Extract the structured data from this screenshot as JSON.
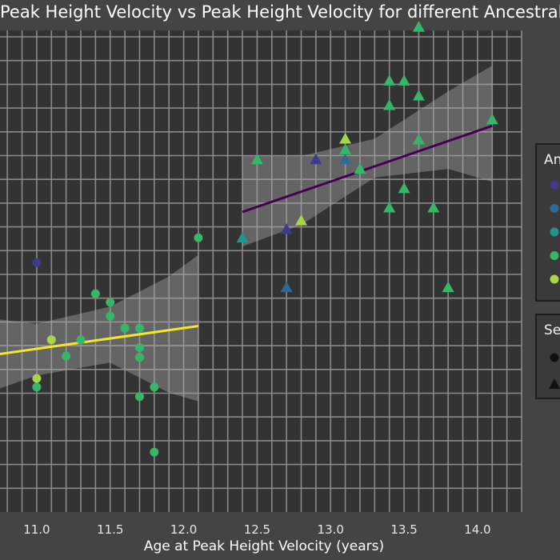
{
  "chart_data": {
    "type": "scatter",
    "title": "Peak Height Velocity vs Peak Height Velocity for different Ancestral bac",
    "xlabel": "Age at Peak Height Velocity (years)",
    "ylabel": "",
    "xlim": [
      10.75,
      14.3
    ],
    "x_ticks": [
      "11.0",
      "11.5",
      "12.0",
      "12.5",
      "13.0",
      "13.5",
      "14.0"
    ],
    "ylim": [
      0,
      1
    ],
    "grid": true,
    "background": "#333333",
    "grid_color": "#8a8a8a",
    "legends": [
      {
        "title": "An",
        "placement": "right",
        "entries": [
          {
            "marker": "circle",
            "color": "#3f3a8c"
          },
          {
            "marker": "circle",
            "color": "#306a94"
          },
          {
            "marker": "circle",
            "color": "#22948c"
          },
          {
            "marker": "circle",
            "color": "#37b66a"
          },
          {
            "marker": "circle",
            "color": "#a8d44a"
          }
        ]
      },
      {
        "title": "Se",
        "placement": "right",
        "entries": [
          {
            "marker": "circle",
            "color": "#111111"
          },
          {
            "marker": "triangle",
            "color": "#111111"
          }
        ]
      }
    ],
    "circles": [
      {
        "x": 11.0,
        "y": 0.542,
        "color": "#3f3a8c"
      },
      {
        "x": 11.1,
        "y": 0.363,
        "color": "#a8d44a"
      },
      {
        "x": 11.0,
        "y": 0.273,
        "color": "#a8d44a"
      },
      {
        "x": 11.0,
        "y": 0.253,
        "color": "#37b66a"
      },
      {
        "x": 11.2,
        "y": 0.325,
        "color": "#37b66a"
      },
      {
        "x": 11.3,
        "y": 0.363,
        "color": "#37b66a"
      },
      {
        "x": 11.4,
        "y": 0.47,
        "color": "#37b66a"
      },
      {
        "x": 11.5,
        "y": 0.45,
        "color": "#37b66a"
      },
      {
        "x": 11.5,
        "y": 0.418,
        "color": "#37b66a"
      },
      {
        "x": 11.6,
        "y": 0.39,
        "color": "#37b66a"
      },
      {
        "x": 11.7,
        "y": 0.39,
        "color": "#37b66a"
      },
      {
        "x": 11.7,
        "y": 0.345,
        "color": "#37b66a"
      },
      {
        "x": 11.7,
        "y": 0.322,
        "color": "#37b66a"
      },
      {
        "x": 11.7,
        "y": 0.231,
        "color": "#37b66a"
      },
      {
        "x": 11.8,
        "y": 0.253,
        "color": "#37b66a"
      },
      {
        "x": 11.8,
        "y": 0.102,
        "color": "#37b66a"
      },
      {
        "x": 12.1,
        "y": 0.6,
        "color": "#37b66a"
      }
    ],
    "triangles": [
      {
        "x": 12.4,
        "y": 0.6,
        "color": "#22948c"
      },
      {
        "x": 12.5,
        "y": 0.782,
        "color": "#37b66a"
      },
      {
        "x": 12.7,
        "y": 0.485,
        "color": "#306a94"
      },
      {
        "x": 12.7,
        "y": 0.62,
        "color": "#3f3a8c"
      },
      {
        "x": 12.8,
        "y": 0.64,
        "color": "#a8d44a"
      },
      {
        "x": 12.9,
        "y": 0.782,
        "color": "#3f3a8c"
      },
      {
        "x": 13.1,
        "y": 0.782,
        "color": "#306a94"
      },
      {
        "x": 13.1,
        "y": 0.805,
        "color": "#37b66a"
      },
      {
        "x": 13.1,
        "y": 0.83,
        "color": "#a8d44a"
      },
      {
        "x": 13.2,
        "y": 0.76,
        "color": "#37b66a"
      },
      {
        "x": 13.4,
        "y": 0.67,
        "color": "#37b66a"
      },
      {
        "x": 13.4,
        "y": 0.908,
        "color": "#37b66a"
      },
      {
        "x": 13.4,
        "y": 0.965,
        "color": "#37b66a"
      },
      {
        "x": 13.5,
        "y": 0.965,
        "color": "#37b66a"
      },
      {
        "x": 13.5,
        "y": 0.715,
        "color": "#37b66a"
      },
      {
        "x": 13.6,
        "y": 1.09,
        "color": "#37b66a"
      },
      {
        "x": 13.6,
        "y": 0.93,
        "color": "#37b66a"
      },
      {
        "x": 13.6,
        "y": 0.828,
        "color": "#37b66a"
      },
      {
        "x": 13.7,
        "y": 0.67,
        "color": "#37b66a"
      },
      {
        "x": 13.8,
        "y": 0.485,
        "color": "#37b66a"
      },
      {
        "x": 14.1,
        "y": 0.875,
        "color": "#37b66a"
      }
    ],
    "fits": [
      {
        "color": "#f5e626",
        "x": [
          10.75,
          12.1
        ],
        "y": [
          0.33,
          0.395
        ],
        "band_x": [
          10.75,
          11.0,
          11.5,
          11.9,
          12.1
        ],
        "band_lower": [
          0.25,
          0.28,
          0.31,
          0.24,
          0.22
        ],
        "band_upper": [
          0.41,
          0.4,
          0.44,
          0.51,
          0.56
        ]
      },
      {
        "color": "#440154",
        "x": [
          12.4,
          14.1
        ],
        "y": [
          0.66,
          0.86
        ],
        "band_x": [
          12.4,
          12.8,
          13.3,
          13.8,
          14.1
        ],
        "band_lower": [
          0.58,
          0.63,
          0.74,
          0.76,
          0.73
        ],
        "band_upper": [
          0.79,
          0.79,
          0.83,
          0.94,
          1.0
        ]
      }
    ]
  }
}
